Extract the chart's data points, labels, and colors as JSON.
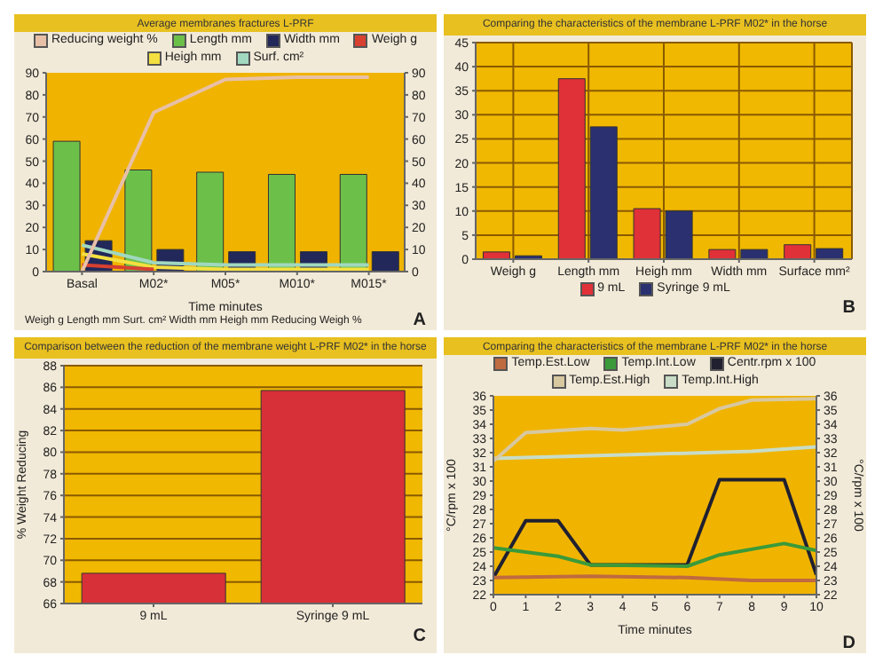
{
  "chart_data": [
    {
      "type": "bar",
      "title": "Average membranes fractures L-PRF",
      "categories": [
        "Basal",
        "M02*",
        "M05*",
        "M010*",
        "M015*"
      ],
      "xlabel": "Time minutes",
      "series": [
        {
          "name": "Reducing weight %",
          "type": "line",
          "color": "#e8c0a8",
          "values": [
            0,
            72,
            87,
            88,
            88
          ]
        },
        {
          "name": "Length mm",
          "color": "#6cc04a",
          "values": [
            59,
            46,
            45,
            44,
            44
          ]
        },
        {
          "name": "Width mm",
          "color": "#22285a",
          "values": [
            14,
            10,
            9,
            9,
            9
          ]
        },
        {
          "name": "Weigh g",
          "type": "line",
          "color": "#d84030",
          "values": [
            3,
            1,
            null,
            null,
            null
          ]
        },
        {
          "name": "Heigh mm",
          "type": "line",
          "color": "#f4e040",
          "values": [
            8,
            2,
            1,
            1,
            1
          ]
        },
        {
          "name": "Surf. cm²",
          "type": "line",
          "color": "#a0d8c0",
          "values": [
            12,
            4,
            3,
            3,
            3
          ]
        }
      ],
      "ylim": [
        0,
        90
      ],
      "yticks": [
        0,
        10,
        20,
        30,
        40,
        50,
        60,
        70,
        80,
        90
      ],
      "y2lim": [
        0,
        90
      ],
      "y2ticks": [
        0,
        10,
        20,
        30,
        40,
        50,
        60,
        70,
        80,
        90
      ],
      "legend": "top",
      "annotations": [
        "Weigh g Length mm Surt. cm² Width mm Heigh mm Reducing Weigh %",
        "A"
      ]
    },
    {
      "type": "bar",
      "title": "Comparing the characteristics of the membrane L-PRF M02* in the horse",
      "categories": [
        "Weigh g",
        "Length mm",
        "Heigh mm",
        "Width mm",
        "Surface mm²"
      ],
      "series": [
        {
          "name": "9 mL",
          "color": "#e03038",
          "values": [
            1.5,
            37.5,
            10.5,
            2,
            3
          ]
        },
        {
          "name": "Syringe 9 mL",
          "color": "#2a3070",
          "values": [
            0.7,
            27.5,
            10,
            2,
            2.2
          ]
        }
      ],
      "ylim": [
        0,
        45
      ],
      "yticks": [
        0,
        5,
        10,
        15,
        20,
        25,
        30,
        35,
        40,
        45
      ],
      "grid": true,
      "legend": "bottom",
      "annotations": [
        "B"
      ]
    },
    {
      "type": "bar",
      "title": "Comparison between the reduction of the membrane weight L-PRF M02* in the horse",
      "categories": [
        "9 mL",
        "Syringe 9 mL"
      ],
      "ylabel": "% Weight Reducing",
      "values": [
        68.8,
        85.7
      ],
      "color": "#d83038",
      "ylim": [
        66,
        88
      ],
      "yticks": [
        66,
        68,
        70,
        72,
        74,
        76,
        78,
        80,
        82,
        84,
        86,
        88
      ],
      "grid": "y",
      "annotations": [
        "C"
      ]
    },
    {
      "type": "line",
      "title": "Comparing the characteristics of the membrane L-PRF M02* in the horse",
      "xlabel": "Time minutes",
      "ylabel": "°C/rpm x 100",
      "y2label": "°C/rpm x 100",
      "series": [
        {
          "name": "Temp.Est.Low",
          "color": "#c06a40",
          "x": [
            0,
            3,
            6,
            8,
            10
          ],
          "values": [
            23.2,
            23.3,
            23.2,
            23.0,
            23.0
          ]
        },
        {
          "name": "Temp.Int.Low",
          "color": "#3a9a3a",
          "x": [
            0,
            2,
            3,
            6,
            7,
            9,
            10
          ],
          "values": [
            25.3,
            24.7,
            24.1,
            24.0,
            24.8,
            25.6,
            25.1
          ]
        },
        {
          "name": "Centr.rpm x 100",
          "color": "#202030",
          "x": [
            0,
            1,
            2,
            3,
            6,
            7,
            9,
            10
          ],
          "values": [
            23.2,
            27.2,
            27.2,
            24.1,
            24.1,
            30.1,
            30.1,
            23.4
          ]
        },
        {
          "name": "Temp.Est.High",
          "color": "#d8c8a0",
          "x": [
            0,
            1,
            3,
            4,
            6,
            7,
            8,
            10
          ],
          "values": [
            31.4,
            33.4,
            33.7,
            33.6,
            34.0,
            35.1,
            35.7,
            35.8
          ]
        },
        {
          "name": "Temp.Int.High",
          "color": "#c8dcc8",
          "x": [
            0,
            5,
            8,
            10
          ],
          "values": [
            31.6,
            31.9,
            32.1,
            32.4
          ]
        }
      ],
      "xlim": [
        0,
        10
      ],
      "xticks": [
        0,
        1,
        2,
        3,
        4,
        5,
        6,
        7,
        8,
        9,
        10
      ],
      "ylim": [
        22,
        36
      ],
      "yticks": [
        22,
        23,
        24,
        25,
        26,
        27,
        28,
        29,
        30,
        31,
        32,
        33,
        34,
        35,
        36
      ],
      "y2lim": [
        22,
        36
      ],
      "y2ticks": [
        22,
        23,
        24,
        25,
        26,
        27,
        28,
        29,
        30,
        31,
        32,
        33,
        34,
        35,
        36
      ],
      "legend": "top",
      "annotations": [
        "D"
      ]
    }
  ]
}
